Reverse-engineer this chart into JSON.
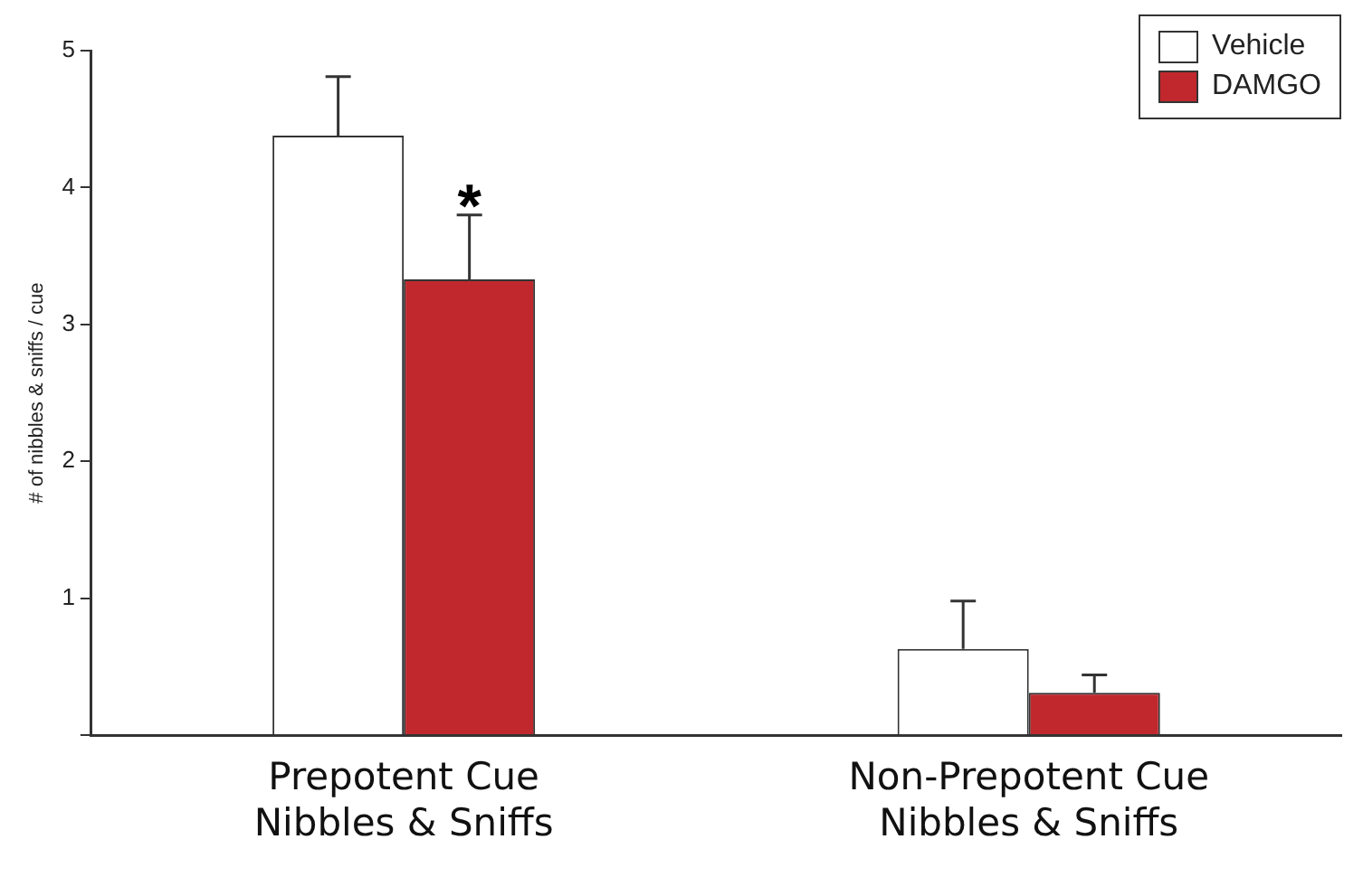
{
  "chart_data": {
    "type": "bar",
    "ylabel": "# of nibbles & sniffs / cue",
    "categories": [
      "Prepotent Cue\nNibbles & Sniffs",
      "Non-Prepotent Cue\nNibbles & Sniffs"
    ],
    "series": [
      {
        "name": "Vehicle",
        "color": "#ffffff",
        "values": [
          4.38,
          0.63
        ],
        "errors": [
          [
            4.38,
            4.81
          ],
          [
            0.63,
            0.98
          ]
        ]
      },
      {
        "name": "DAMGO",
        "color": "#c0282d",
        "values": [
          3.33,
          0.31
        ],
        "errors": [
          [
            3.33,
            3.8
          ],
          [
            0.31,
            0.44
          ]
        ]
      }
    ],
    "ylim": [
      0,
      5
    ],
    "yticks": [
      {
        "value": 0,
        "label": null
      },
      1,
      2,
      3,
      4,
      5
    ],
    "annotations": [
      {
        "text": "*",
        "x": "Prepotent Cue\nNibbles & Sniffs",
        "y": 3.85
      }
    ],
    "grid": false,
    "legend": "top right"
  }
}
